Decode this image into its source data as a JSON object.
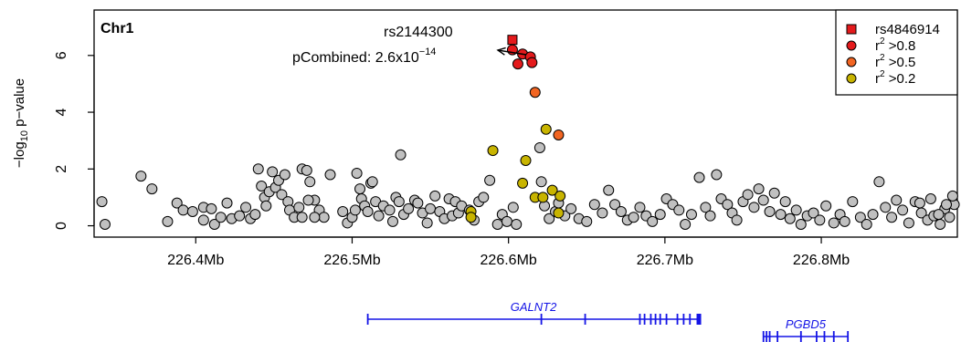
{
  "chart_data": {
    "type": "scatter",
    "panel_label": "Chr1",
    "ylabel_main": "−log",
    "ylabel_sub": "10",
    "ylabel_rest": " p−value",
    "x_range_mb": [
      226.335,
      226.887
    ],
    "ylim": [
      -0.4,
      7.6
    ],
    "x_ticks": [
      {
        "value": 226.4,
        "label": "226.4Mb"
      },
      {
        "value": 226.5,
        "label": "226.5Mb"
      },
      {
        "value": 226.6,
        "label": "226.6Mb"
      },
      {
        "value": 226.7,
        "label": "226.7Mb"
      },
      {
        "value": 226.8,
        "label": "226.8Mb"
      }
    ],
    "y_ticks": [
      {
        "value": 0,
        "label": "0"
      },
      {
        "value": 2,
        "label": "2"
      },
      {
        "value": 4,
        "label": "4"
      },
      {
        "value": 6,
        "label": "6"
      }
    ],
    "annotation": {
      "snp_label": "rs2144300",
      "pval_prefix": "pCombined: 2.6x10",
      "pval_exponent": "−14",
      "point": [
        226.6025,
        6.18
      ]
    },
    "legend": {
      "items": [
        {
          "label": "rs4846914",
          "sup": "",
          "shape": "square",
          "color": "#e41a1c"
        },
        {
          "label": "r",
          "sup": "2",
          "suffix": " >0.8",
          "shape": "circle",
          "color": "#e41a1c"
        },
        {
          "label": "r",
          "sup": "2",
          "suffix": " >0.5",
          "shape": "circle",
          "color": "#f26522"
        },
        {
          "label": "r",
          "sup": "2",
          "suffix": " >0.2",
          "shape": "circle",
          "color": "#c8b400"
        }
      ]
    },
    "colors": {
      "gray": "#c0c0c0",
      "high": "#e41a1c",
      "mid": "#f26522",
      "low": "#c8b400",
      "gene": "#1414e6"
    },
    "series": [
      {
        "group": "index",
        "points": [
          [
            226.6025,
            6.55
          ]
        ]
      },
      {
        "group": "high",
        "points": [
          [
            226.6025,
            6.2
          ],
          [
            226.609,
            6.05
          ],
          [
            226.614,
            5.95
          ],
          [
            226.615,
            5.75
          ],
          [
            226.606,
            5.7
          ]
        ]
      },
      {
        "group": "mid",
        "points": [
          [
            226.617,
            4.7
          ],
          [
            226.632,
            3.2
          ]
        ]
      },
      {
        "group": "low",
        "points": [
          [
            226.59,
            2.65
          ],
          [
            226.624,
            3.4
          ],
          [
            226.611,
            2.3
          ],
          [
            226.609,
            1.5
          ],
          [
            226.617,
            1.0
          ],
          [
            226.622,
            1.0
          ],
          [
            226.628,
            1.25
          ],
          [
            226.633,
            1.05
          ],
          [
            226.632,
            0.45
          ],
          [
            226.576,
            0.5
          ],
          [
            226.576,
            0.3
          ]
        ]
      },
      {
        "group": "other",
        "points": [
          [
            226.34,
            0.85
          ],
          [
            226.342,
            0.05
          ],
          [
            226.365,
            1.75
          ],
          [
            226.372,
            1.3
          ],
          [
            226.382,
            0.15
          ],
          [
            226.388,
            0.8
          ],
          [
            226.392,
            0.55
          ],
          [
            226.398,
            0.5
          ],
          [
            226.405,
            0.65
          ],
          [
            226.405,
            0.2
          ],
          [
            226.41,
            0.6
          ],
          [
            226.412,
            0.05
          ],
          [
            226.416,
            0.3
          ],
          [
            226.42,
            0.8
          ],
          [
            226.423,
            0.25
          ],
          [
            226.428,
            0.35
          ],
          [
            226.432,
            0.65
          ],
          [
            226.435,
            0.25
          ],
          [
            226.438,
            0.4
          ],
          [
            226.44,
            2.0
          ],
          [
            226.442,
            1.4
          ],
          [
            226.444,
            1.0
          ],
          [
            226.445,
            0.7
          ],
          [
            226.447,
            1.2
          ],
          [
            226.449,
            1.9
          ],
          [
            226.451,
            1.35
          ],
          [
            226.453,
            1.6
          ],
          [
            226.455,
            1.1
          ],
          [
            226.457,
            1.8
          ],
          [
            226.459,
            0.85
          ],
          [
            226.46,
            0.55
          ],
          [
            226.463,
            0.3
          ],
          [
            226.466,
            0.65
          ],
          [
            226.468,
            2.0
          ],
          [
            226.471,
            1.95
          ],
          [
            226.473,
            1.55
          ],
          [
            226.476,
            0.9
          ],
          [
            226.479,
            0.55
          ],
          [
            226.482,
            0.3
          ],
          [
            226.468,
            0.3
          ],
          [
            226.472,
            0.9
          ],
          [
            226.476,
            0.3
          ],
          [
            226.486,
            1.8
          ],
          [
            226.494,
            0.5
          ],
          [
            226.497,
            0.1
          ],
          [
            226.5,
            0.3
          ],
          [
            226.502,
            0.55
          ],
          [
            226.503,
            1.85
          ],
          [
            226.505,
            1.3
          ],
          [
            226.506,
            0.95
          ],
          [
            226.508,
            0.7
          ],
          [
            226.51,
            0.5
          ],
          [
            226.512,
            1.5
          ],
          [
            226.513,
            1.55
          ],
          [
            226.515,
            0.85
          ],
          [
            226.517,
            0.35
          ],
          [
            226.52,
            0.7
          ],
          [
            226.524,
            0.55
          ],
          [
            226.526,
            0.15
          ],
          [
            226.528,
            1.0
          ],
          [
            226.53,
            0.85
          ],
          [
            226.531,
            2.5
          ],
          [
            226.533,
            0.4
          ],
          [
            226.536,
            0.6
          ],
          [
            226.54,
            0.9
          ],
          [
            226.542,
            0.8
          ],
          [
            226.545,
            0.45
          ],
          [
            226.548,
            0.1
          ],
          [
            226.55,
            0.6
          ],
          [
            226.553,
            1.05
          ],
          [
            226.556,
            0.5
          ],
          [
            226.559,
            0.25
          ],
          [
            226.562,
            0.95
          ],
          [
            226.564,
            0.35
          ],
          [
            226.566,
            0.85
          ],
          [
            226.568,
            0.45
          ],
          [
            226.57,
            0.7
          ],
          [
            226.575,
            0.55
          ],
          [
            226.578,
            0.2
          ],
          [
            226.581,
            0.85
          ],
          [
            226.584,
            1.0
          ],
          [
            226.588,
            1.6
          ],
          [
            226.593,
            0.05
          ],
          [
            226.596,
            0.4
          ],
          [
            226.599,
            0.15
          ],
          [
            226.603,
            0.65
          ],
          [
            226.605,
            0.05
          ],
          [
            226.62,
            2.75
          ],
          [
            226.621,
            1.55
          ],
          [
            226.623,
            0.7
          ],
          [
            226.626,
            0.25
          ],
          [
            226.63,
            0.5
          ],
          [
            226.632,
            0.8
          ],
          [
            226.636,
            0.35
          ],
          [
            226.64,
            0.6
          ],
          [
            226.645,
            0.25
          ],
          [
            226.65,
            0.15
          ],
          [
            226.655,
            0.75
          ],
          [
            226.66,
            0.45
          ],
          [
            226.664,
            1.25
          ],
          [
            226.668,
            0.75
          ],
          [
            226.672,
            0.5
          ],
          [
            226.676,
            0.2
          ],
          [
            226.68,
            0.3
          ],
          [
            226.684,
            0.65
          ],
          [
            226.688,
            0.35
          ],
          [
            226.692,
            0.15
          ],
          [
            226.697,
            0.4
          ],
          [
            226.701,
            0.95
          ],
          [
            226.705,
            0.75
          ],
          [
            226.709,
            0.55
          ],
          [
            226.713,
            0.05
          ],
          [
            226.717,
            0.4
          ],
          [
            226.722,
            1.7
          ],
          [
            226.726,
            0.65
          ],
          [
            226.729,
            0.35
          ],
          [
            226.733,
            1.8
          ],
          [
            226.736,
            0.95
          ],
          [
            226.74,
            0.75
          ],
          [
            226.743,
            0.45
          ],
          [
            226.746,
            0.2
          ],
          [
            226.75,
            0.85
          ],
          [
            226.753,
            1.1
          ],
          [
            226.757,
            0.65
          ],
          [
            226.76,
            1.3
          ],
          [
            226.763,
            0.9
          ],
          [
            226.767,
            0.5
          ],
          [
            226.77,
            1.15
          ],
          [
            226.774,
            0.4
          ],
          [
            226.777,
            0.85
          ],
          [
            226.78,
            0.25
          ],
          [
            226.784,
            0.55
          ],
          [
            226.787,
            0.05
          ],
          [
            226.791,
            0.35
          ],
          [
            226.795,
            0.45
          ],
          [
            226.799,
            0.2
          ],
          [
            226.803,
            0.7
          ],
          [
            226.808,
            0.1
          ],
          [
            226.812,
            0.4
          ],
          [
            226.815,
            0.15
          ],
          [
            226.82,
            0.85
          ],
          [
            226.825,
            0.3
          ],
          [
            226.829,
            0.05
          ],
          [
            226.833,
            0.4
          ],
          [
            226.837,
            1.55
          ],
          [
            226.841,
            0.65
          ],
          [
            226.845,
            0.3
          ],
          [
            226.848,
            0.9
          ],
          [
            226.852,
            0.55
          ],
          [
            226.856,
            0.1
          ],
          [
            226.86,
            0.85
          ],
          [
            226.864,
            0.45
          ],
          [
            226.868,
            0.2
          ],
          [
            226.872,
            0.35
          ],
          [
            226.876,
            0.05
          ],
          [
            226.879,
            0.6
          ],
          [
            226.882,
            0.3
          ],
          [
            226.885,
            0.75
          ],
          [
            226.863,
            0.8
          ],
          [
            226.87,
            0.95
          ],
          [
            226.875,
            0.4
          ],
          [
            226.88,
            0.75
          ],
          [
            226.884,
            1.05
          ]
        ]
      }
    ],
    "genes": [
      {
        "name": "GALNT2",
        "start": 226.51,
        "end": 226.722,
        "row": 1,
        "exons": [
          226.51,
          226.621,
          226.649,
          226.684,
          226.687,
          226.691,
          226.694,
          226.697,
          226.701,
          226.708,
          226.712,
          226.716,
          226.721,
          226.722
        ]
      },
      {
        "name": "PGBD5",
        "start": 226.763,
        "end": 226.817,
        "row": 2,
        "exons": [
          226.763,
          226.765,
          226.767,
          226.772,
          226.787,
          226.797,
          226.802,
          226.808,
          226.817
        ]
      }
    ]
  }
}
